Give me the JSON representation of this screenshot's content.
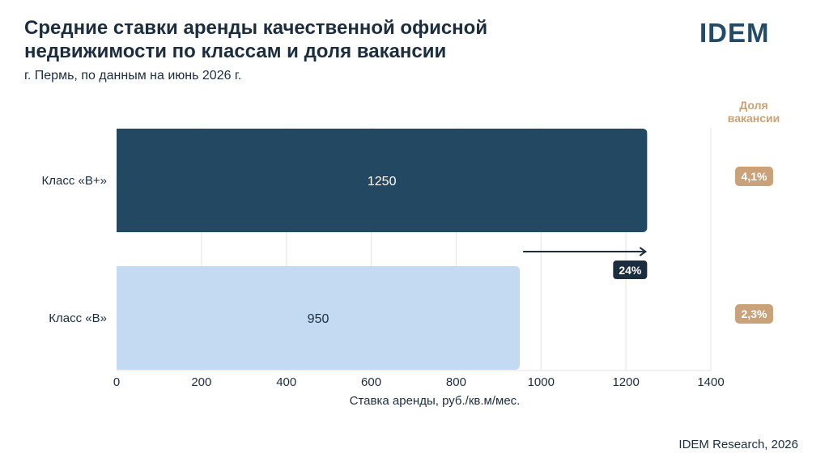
{
  "header": {
    "title_line1": "Средние ставки аренды качественной офисной",
    "title_line2": "недвижимости по классам и доля вакансии",
    "subtitle": "г. Пермь, по данным на июнь 2026 г.",
    "logo": "IDEM"
  },
  "footer": {
    "source": "IDEM Research, 2026"
  },
  "colors": {
    "bar_primary": "#234862",
    "bar_secondary": "#c4d9f2",
    "accent_tan": "#c9a27a",
    "dark_badge": "#1c2d3e"
  },
  "chart_data": {
    "type": "bar",
    "orientation": "horizontal",
    "categories": [
      "Класс «B+»",
      "Класс «B»"
    ],
    "values": [
      1250,
      950
    ],
    "xlabel": "Ставка аренды, руб./кв.м/мес.",
    "xlim": [
      0,
      1400
    ],
    "xticks": [
      0,
      200,
      400,
      600,
      800,
      1000,
      1200,
      1400
    ],
    "grid": true,
    "difference_label": "24%",
    "vacancy": {
      "header_line1": "Доля",
      "header_line2": "вакансии",
      "values": [
        "4,1%",
        "2,3%"
      ]
    }
  }
}
